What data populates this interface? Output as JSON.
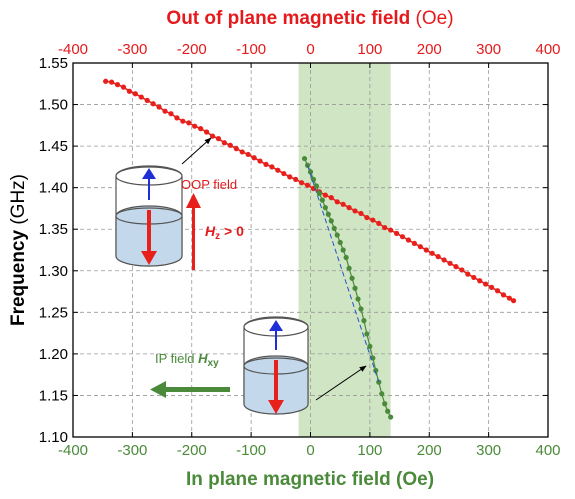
{
  "colors": {
    "top_axis": "#e41a1c",
    "bottom_axis": "#4a8a3a",
    "oop_series": "#e8201c",
    "ip_series": "#4a8a3a",
    "fit_line": "#2255cc",
    "band": "#cfe5c3",
    "grid": "#999999",
    "cylinder_fill": "#c4d8ec",
    "arrow_up": "#1e2fd6",
    "arrow_down": "#e8201c"
  },
  "top_title": {
    "bold": "Out of plane magnetic field",
    "unit": " (Oe)"
  },
  "bottom_title": "In plane magnetic field (Oe)",
  "y_title": {
    "bold": "Frequency",
    "unit": " (GHz)"
  },
  "annotations": {
    "oop_label": "OOP field",
    "hz_sym": "H",
    "hz_sub": "z",
    "hz_rest": " > 0",
    "ip_label": "IP field ",
    "hxy_sym": "H",
    "hxy_sub": "xy"
  },
  "chart_data": {
    "type": "scatter",
    "x_top": {
      "label": "Out of plane magnetic field (Oe)",
      "range": [
        -400,
        400
      ],
      "ticks": [
        -400,
        -300,
        -200,
        -100,
        0,
        100,
        200,
        300,
        400
      ]
    },
    "x_bottom": {
      "label": "In plane magnetic field (Oe)",
      "range": [
        -400,
        400
      ],
      "ticks": [
        -400,
        -300,
        -200,
        -100,
        0,
        100,
        200,
        300,
        400
      ]
    },
    "y": {
      "label": "Frequency (GHz)",
      "range": [
        1.1,
        1.55
      ],
      "ticks": [
        "1.10",
        "1.15",
        "1.20",
        "1.25",
        "1.30",
        "1.35",
        "1.40",
        "1.45",
        "1.50",
        "1.55"
      ]
    },
    "grid": true,
    "shaded_x_range": [
      -20,
      135
    ],
    "series": [
      {
        "axis": "top",
        "points": [
          [
            -345,
            1.528
          ],
          [
            -335,
            1.527
          ],
          [
            -325,
            1.524
          ],
          [
            -315,
            1.521
          ],
          [
            -305,
            1.516
          ],
          [
            -295,
            1.513
          ],
          [
            -285,
            1.509
          ],
          [
            -275,
            1.505
          ],
          [
            -265,
            1.501
          ],
          [
            -255,
            1.497
          ],
          [
            -245,
            1.492
          ],
          [
            -235,
            1.489
          ],
          [
            -225,
            1.484
          ],
          [
            -215,
            1.48
          ],
          [
            -205,
            1.478
          ],
          [
            -195,
            1.474
          ],
          [
            -185,
            1.471
          ],
          [
            -175,
            1.467
          ],
          [
            -165,
            1.462
          ],
          [
            -155,
            1.459
          ],
          [
            -145,
            1.454
          ],
          [
            -135,
            1.451
          ],
          [
            -125,
            1.447
          ],
          [
            -115,
            1.443
          ],
          [
            -105,
            1.44
          ],
          [
            -95,
            1.436
          ],
          [
            -85,
            1.432
          ],
          [
            -75,
            1.428
          ],
          [
            -65,
            1.425
          ],
          [
            -55,
            1.421
          ],
          [
            -45,
            1.417
          ],
          [
            -35,
            1.413
          ],
          [
            -25,
            1.41
          ],
          [
            -15,
            1.406
          ],
          [
            -5,
            1.403
          ],
          [
            5,
            1.399
          ],
          [
            15,
            1.395
          ],
          [
            25,
            1.391
          ],
          [
            35,
            1.388
          ],
          [
            45,
            1.383
          ],
          [
            55,
            1.38
          ],
          [
            65,
            1.376
          ],
          [
            75,
            1.372
          ],
          [
            85,
            1.369
          ],
          [
            95,
            1.364
          ],
          [
            105,
            1.361
          ],
          [
            115,
            1.357
          ],
          [
            125,
            1.352
          ],
          [
            135,
            1.349
          ],
          [
            145,
            1.345
          ],
          [
            155,
            1.341
          ],
          [
            165,
            1.337
          ],
          [
            175,
            1.333
          ],
          [
            185,
            1.329
          ],
          [
            195,
            1.325
          ],
          [
            205,
            1.321
          ],
          [
            215,
            1.317
          ],
          [
            225,
            1.313
          ],
          [
            235,
            1.309
          ],
          [
            245,
            1.305
          ],
          [
            255,
            1.301
          ],
          [
            265,
            1.296
          ],
          [
            275,
            1.292
          ],
          [
            285,
            1.288
          ],
          [
            295,
            1.284
          ],
          [
            305,
            1.28
          ],
          [
            315,
            1.276
          ],
          [
            325,
            1.271
          ],
          [
            335,
            1.267
          ],
          [
            342,
            1.264
          ]
        ]
      },
      {
        "axis": "bottom",
        "points": [
          [
            -10,
            1.435
          ],
          [
            -5,
            1.427
          ],
          [
            0,
            1.419
          ],
          [
            5,
            1.41
          ],
          [
            10,
            1.402
          ],
          [
            15,
            1.393
          ],
          [
            20,
            1.385
          ],
          [
            25,
            1.376
          ],
          [
            30,
            1.368
          ],
          [
            35,
            1.36
          ],
          [
            40,
            1.351
          ],
          [
            45,
            1.343
          ],
          [
            50,
            1.334
          ],
          [
            55,
            1.325
          ],
          [
            60,
            1.316
          ],
          [
            65,
            1.303
          ],
          [
            70,
            1.291
          ],
          [
            75,
            1.279
          ],
          [
            80,
            1.266
          ],
          [
            85,
            1.254
          ],
          [
            90,
            1.24
          ],
          [
            95,
            1.224
          ],
          [
            100,
            1.209
          ],
          [
            105,
            1.195
          ],
          [
            110,
            1.18
          ],
          [
            115,
            1.166
          ],
          [
            120,
            1.152
          ],
          [
            125,
            1.14
          ],
          [
            130,
            1.131
          ],
          [
            135,
            1.124
          ]
        ]
      }
    ]
  }
}
